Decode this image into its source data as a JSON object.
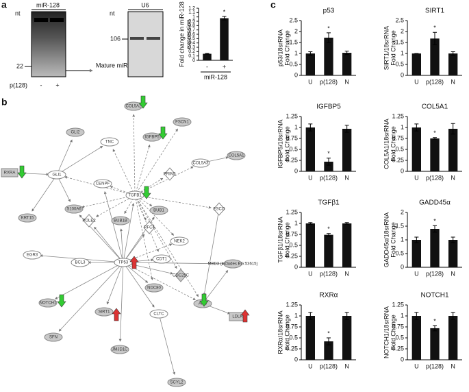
{
  "panel_labels": [
    "a",
    "b",
    "c"
  ],
  "blots": [
    {
      "title": "miR-128",
      "unit": "nt",
      "markers": [
        "22"
      ],
      "arrow_label": "Mature miR-128",
      "lane_label": "p(128)",
      "lanes": [
        "-",
        "+"
      ]
    },
    {
      "title": "U6",
      "unit": "nt",
      "markers": [
        "106"
      ]
    }
  ],
  "chart_data": [
    {
      "type": "bar",
      "y_label": [
        "Fold change in miR-128",
        "expression"
      ],
      "x_label": "miR-128",
      "categories": [
        "-",
        "+"
      ],
      "values": [
        0.15,
        0.97
      ],
      "errors": [
        0.01,
        0.04
      ],
      "annotation": "*",
      "color": "#111111",
      "ylim": [
        0,
        1.2
      ],
      "yticks": [
        0,
        0.1,
        0.2,
        0.3,
        0.4,
        0.5,
        0.6,
        0.7,
        0.8,
        0.9,
        1,
        1.1,
        1.2
      ]
    },
    {
      "type": "bar",
      "title": "p53",
      "y_label": [
        "p53/18srRNA",
        "Fold Change"
      ],
      "categories": [
        "U",
        "p(128)",
        "N"
      ],
      "values": [
        1,
        1.72,
        1.03
      ],
      "errors": [
        0.08,
        0.22,
        0.08
      ],
      "annotation": "*",
      "color": "#111111",
      "ylim": [
        0,
        2.5
      ],
      "yticks": [
        0,
        0.5,
        1,
        1.5,
        2,
        2.5
      ]
    },
    {
      "type": "bar",
      "title": "SIRT1",
      "y_label": [
        "SIRT1/18srRNA",
        "Fold Change"
      ],
      "categories": [
        "U",
        "p(128)",
        "N"
      ],
      "values": [
        1,
        1.68,
        1
      ],
      "errors": [
        0,
        0.28,
        0.08
      ],
      "annotation": "*",
      "color": "#111111",
      "ylim": [
        0,
        2.5
      ],
      "yticks": [
        0,
        0.5,
        1,
        1.5,
        2,
        2.5
      ]
    },
    {
      "type": "bar",
      "title": "IGFBP5",
      "y_label": [
        "IGFBP5/18srRNA",
        "Fold Change"
      ],
      "categories": [
        "U",
        "p(128)",
        "N"
      ],
      "values": [
        1,
        0.22,
        0.97
      ],
      "errors": [
        0.08,
        0.08,
        0.08
      ],
      "annotation": "*",
      "color": "#111111",
      "ylim": [
        0,
        1.25
      ],
      "yticks": [
        0,
        0.25,
        0.5,
        0.75,
        1,
        1.25
      ]
    },
    {
      "type": "bar",
      "title": "COL5A1",
      "y_label": [
        "COL5A1/18srRNA",
        "Fold Change"
      ],
      "categories": [
        "U",
        "p(128)",
        "N"
      ],
      "values": [
        1,
        0.75,
        0.97
      ],
      "errors": [
        0.08,
        0.02,
        0.12
      ],
      "annotation": "*",
      "color": "#111111",
      "ylim": [
        0,
        1.25
      ],
      "yticks": [
        0,
        0.25,
        0.5,
        0.75,
        1,
        1.25
      ]
    },
    {
      "type": "bar",
      "title": "TGFβ1",
      "y_label": [
        "TGFβ1/18srRNA",
        "Fold Change"
      ],
      "categories": [
        "U",
        "p(128)",
        "N"
      ],
      "values": [
        1,
        0.74,
        1
      ],
      "errors": [
        0.02,
        0.03,
        0.02
      ],
      "annotation": "*",
      "color": "#111111",
      "ylim": [
        0,
        1.25
      ],
      "yticks": [
        0,
        0.25,
        0.5,
        0.75,
        1,
        1.25
      ]
    },
    {
      "type": "bar",
      "title": "GADD45α",
      "y_label": [
        "GADD45α/18srRNA",
        "Fold Change"
      ],
      "categories": [
        "U",
        "p(128)",
        "N"
      ],
      "values": [
        1,
        1.4,
        1
      ],
      "errors": [
        0.1,
        0.12,
        0.1
      ],
      "annotation": "*",
      "color": "#111111",
      "ylim": [
        0,
        2
      ],
      "yticks": [
        0,
        0.5,
        1,
        1.5,
        2
      ]
    },
    {
      "type": "bar",
      "title": "RXRα",
      "y_label": [
        "RXRα/18srRNA",
        "Fold Change"
      ],
      "categories": [
        "U",
        "p(128)",
        "N"
      ],
      "values": [
        1,
        0.42,
        1
      ],
      "errors": [
        0.08,
        0.08,
        0.08
      ],
      "annotation": "*",
      "color": "#111111",
      "ylim": [
        0,
        1.25
      ],
      "yticks": [
        0,
        0.25,
        0.5,
        0.75,
        1,
        1.25
      ]
    },
    {
      "type": "bar",
      "title": "NOTCH1",
      "y_label": [
        "NOTCH1/18srRNA",
        "Fold Change"
      ],
      "categories": [
        "U",
        "p(128)",
        "N"
      ],
      "values": [
        1,
        0.72,
        1
      ],
      "errors": [
        0.08,
        0.06,
        0.08
      ],
      "annotation": "*",
      "color": "#111111",
      "ylim": [
        0,
        1.25
      ],
      "yticks": [
        0,
        0.25,
        0.5,
        0.75,
        1,
        1.25
      ]
    }
  ],
  "network": {
    "nodes": [
      "COL5A2",
      "FSCN1",
      "GLI2",
      "TNC",
      "IGFBP5",
      "RXRA",
      "GLI1",
      "COL5A3",
      "COL5A1",
      "PRIM1",
      "CENPF",
      "TGFB1",
      "S100A6",
      "POLE2",
      "BUB1",
      "ESCO",
      "KRT15",
      "BUB1B",
      "RFC4",
      "NEK2",
      "EGR3",
      "BCL3",
      "TP53",
      "CDT1",
      "CDC25C",
      "MBD3 (includes EG:53615)",
      "NDC80",
      "APC",
      "NOTCH1",
      "SIRT1",
      "LDLR",
      "CLTC",
      "SFN",
      "JMJD1C",
      "SCYL2"
    ]
  }
}
